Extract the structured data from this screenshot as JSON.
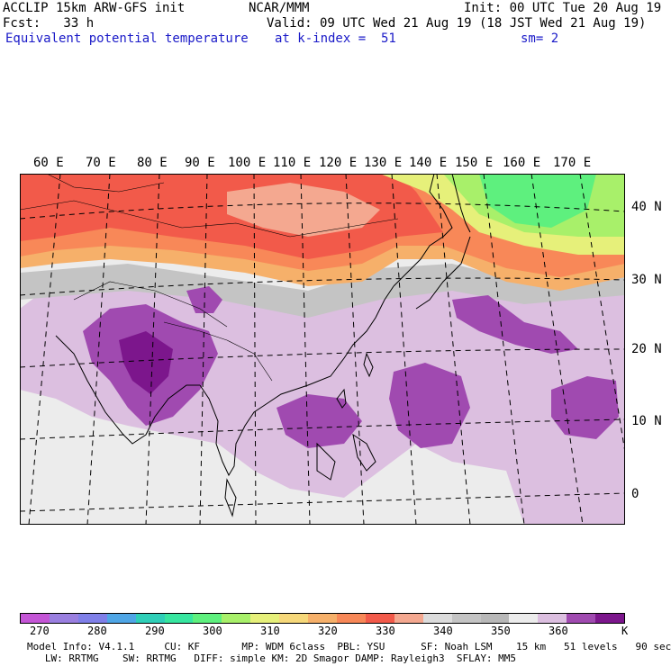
{
  "header": {
    "line1_left": "ACCLIP 15km ARW-GFS init",
    "line1_mid": "NCAR/MMM",
    "line1_right": "Init: 00 UTC Tue 20 Aug 19",
    "line2_left": "Fcst:   33 h",
    "line2_right": "Valid: 09 UTC Wed 21 Aug 19 (18 JST Wed 21 Aug 19)",
    "line3_left": "Equivalent potential temperature",
    "line3_mid": "at k-index =  51",
    "line3_right": "sm= 2"
  },
  "lon_labels": [
    "60 E",
    "70 E",
    "80 E",
    "90 E",
    "100 E",
    "110 E",
    "120 E",
    "130 E",
    "140 E",
    "150 E",
    "160 E",
    "170 E"
  ],
  "lat_labels": [
    "40 N",
    "30 N",
    "20 N",
    "10 N",
    "0"
  ],
  "colorbar": {
    "labels": [
      "270",
      "280",
      "290",
      "300",
      "310",
      "320",
      "330",
      "340",
      "350",
      "360",
      "K"
    ],
    "colors": [
      "#c455d6",
      "#9a7fe0",
      "#7f7fe8",
      "#4fa6e6",
      "#2fcfb8",
      "#37e6a0",
      "#5ef07e",
      "#a8f06a",
      "#e6f07a",
      "#f6d87a",
      "#f6b06a",
      "#f88858",
      "#f25a4a",
      "#f4a890",
      "#dcdcdc",
      "#c4c4c4",
      "#b8b8b8",
      "#ececec",
      "#dcbfe0",
      "#a04ab0",
      "#7c168c"
    ]
  },
  "footer": {
    "line1": "Model Info: V4.1.1     CU: KF       MP: WDM 6class  PBL: YSU      SF: Noah LSM    15 km   51 levels   90 sec",
    "line2": "   LW: RRTMG    SW: RRTMG   DIFF: simple KM: 2D Smagor DAMP: Rayleigh3  SFLAY: MM5"
  },
  "colors": {
    "title_blue": "#1a1ac8",
    "warm_red": "#f25a4a",
    "orange": "#f88858",
    "light_orange": "#f6b06a",
    "green": "#5ef07e",
    "light_green": "#a8f06a",
    "lavender": "#dcbfe0",
    "purple": "#a04ab0",
    "gray": "#c4c4c4",
    "light_gray": "#ececec"
  }
}
